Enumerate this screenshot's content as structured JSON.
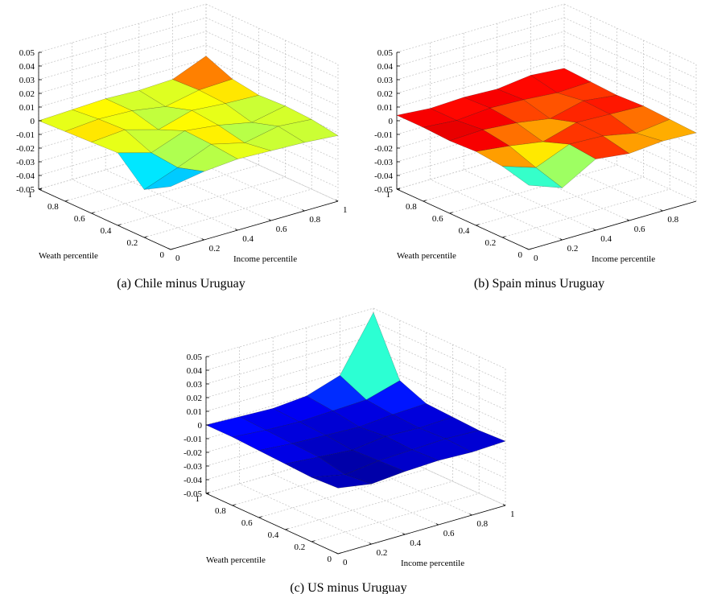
{
  "chart_data": [
    {
      "type": "surface",
      "caption": "(a) Chile minus Uruguay",
      "xlabel": "Income percentile",
      "ylabel": "Weath percentile",
      "x": [
        0,
        0.2,
        0.4,
        0.6,
        0.8,
        1
      ],
      "y": [
        0,
        0.2,
        0.4,
        0.6,
        0.8,
        1
      ],
      "z": [
        [
          -0.004,
          0.0,
          0.002,
          0.001,
          0.0,
          -0.002
        ],
        [
          -0.015,
          -0.006,
          0.004,
          -0.002,
          0.003,
          0.001
        ],
        [
          0.003,
          -0.004,
          0.005,
          0.002,
          -0.003,
          0.002
        ],
        [
          0.002,
          0.004,
          -0.003,
          0.004,
          0.002,
          0.001
        ],
        [
          0.001,
          0.003,
          0.002,
          -0.002,
          0.003,
          0.004
        ],
        [
          0.0,
          0.001,
          0.002,
          0.001,
          0.002,
          0.012
        ]
      ],
      "xlim": [
        0,
        1
      ],
      "ylim": [
        0,
        1
      ],
      "zlim": [
        -0.05,
        0.05
      ],
      "xticks": [
        0,
        0.2,
        0.4,
        0.6,
        0.8,
        1
      ],
      "yticks": [
        0,
        0.2,
        0.4,
        0.6,
        0.8,
        1
      ],
      "zticks": [
        -0.05,
        -0.04,
        -0.03,
        -0.02,
        -0.01,
        0,
        0.01,
        0.02,
        0.03,
        0.04,
        0.05
      ],
      "grid": true,
      "colormap": "jet"
    },
    {
      "type": "surface",
      "caption": "(b) Spain minus Uruguay",
      "xlabel": "Income percentile",
      "ylabel": "Weath percentile",
      "x": [
        0,
        0.2,
        0.4,
        0.6,
        0.8,
        1
      ],
      "y": [
        0,
        0.2,
        0.4,
        0.6,
        0.8,
        1
      ],
      "z": [
        [
          -0.003,
          -0.012,
          0.002,
          -0.001,
          0.001,
          0.0
        ],
        [
          0.002,
          -0.006,
          0.004,
          0.003,
          -0.002,
          0.001
        ],
        [
          0.004,
          0.001,
          -0.003,
          0.004,
          0.003,
          0.002
        ],
        [
          0.003,
          0.004,
          0.002,
          -0.002,
          0.004,
          0.001
        ],
        [
          0.004,
          0.002,
          0.004,
          0.003,
          0.001,
          0.002
        ],
        [
          0.004,
          0.002,
          0.003,
          0.002,
          0.005,
          0.003
        ]
      ],
      "xlim": [
        0,
        1
      ],
      "ylim": [
        0,
        1
      ],
      "zlim": [
        -0.05,
        0.05
      ],
      "xticks": [
        0,
        0.2,
        0.4,
        0.6,
        0.8
      ],
      "yticks": [
        0,
        0.2,
        0.4,
        0.6,
        0.8,
        1
      ],
      "zticks": [
        -0.05,
        -0.04,
        -0.03,
        -0.02,
        -0.01,
        0,
        0.01,
        0.02,
        0.03,
        0.04,
        0.05
      ],
      "grid": true,
      "colormap": "jet"
    },
    {
      "type": "surface",
      "caption": "(c) US minus Uruguay",
      "xlabel": "Income percentile",
      "ylabel": "Weath percentile",
      "x": [
        0,
        0.2,
        0.4,
        0.6,
        0.8,
        1
      ],
      "y": [
        0,
        0.2,
        0.4,
        0.6,
        0.8,
        1
      ],
      "z": [
        [
          -0.002,
          -0.006,
          -0.004,
          -0.003,
          -0.004,
          -0.003
        ],
        [
          -0.003,
          -0.008,
          -0.005,
          -0.004,
          -0.003,
          -0.004
        ],
        [
          -0.002,
          -0.004,
          -0.006,
          -0.003,
          -0.004,
          -0.003
        ],
        [
          -0.001,
          -0.003,
          -0.004,
          -0.005,
          -0.003,
          -0.002
        ],
        [
          0.0,
          -0.002,
          -0.003,
          -0.002,
          -0.001,
          0.006
        ],
        [
          0.0,
          -0.001,
          -0.002,
          0.0,
          0.008,
          0.047
        ]
      ],
      "xlim": [
        0,
        1
      ],
      "ylim": [
        0,
        1
      ],
      "zlim": [
        -0.05,
        0.05
      ],
      "xticks": [
        0,
        0.2,
        0.4,
        0.6,
        0.8,
        1
      ],
      "yticks": [
        0,
        0.2,
        0.4,
        0.6,
        0.8,
        1
      ],
      "zticks": [
        -0.05,
        -0.04,
        -0.03,
        -0.02,
        -0.01,
        0,
        0.01,
        0.02,
        0.03,
        0.04,
        0.05
      ],
      "grid": true,
      "colormap": "jet"
    }
  ]
}
